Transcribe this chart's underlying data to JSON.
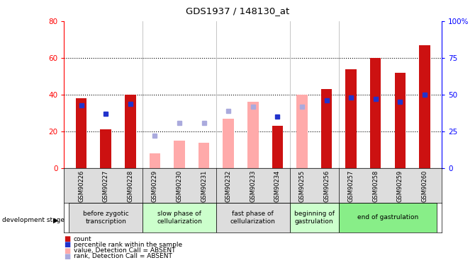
{
  "title": "GDS1937 / 148130_at",
  "samples": [
    "GSM90226",
    "GSM90227",
    "GSM90228",
    "GSM90229",
    "GSM90230",
    "GSM90231",
    "GSM90232",
    "GSM90233",
    "GSM90234",
    "GSM90255",
    "GSM90256",
    "GSM90257",
    "GSM90258",
    "GSM90259",
    "GSM90260"
  ],
  "count_values": [
    38,
    21,
    40,
    null,
    null,
    null,
    null,
    null,
    23,
    null,
    43,
    54,
    60,
    52,
    67
  ],
  "rank_values": [
    43,
    37,
    44,
    null,
    null,
    null,
    null,
    null,
    35,
    null,
    46,
    48,
    47,
    45,
    50
  ],
  "absent_value": [
    null,
    null,
    null,
    8,
    15,
    14,
    27,
    36,
    null,
    40,
    null,
    null,
    null,
    null,
    null
  ],
  "absent_rank": [
    null,
    null,
    null,
    22,
    31,
    31,
    39,
    42,
    null,
    42,
    null,
    null,
    null,
    null,
    null
  ],
  "bar_width": 0.45,
  "ylim_left": [
    0,
    80
  ],
  "ylim_right": [
    0,
    100
  ],
  "yticks_left": [
    0,
    20,
    40,
    60,
    80
  ],
  "yticks_right": [
    0,
    25,
    50,
    75,
    100
  ],
  "color_count": "#cc1111",
  "color_rank": "#2233cc",
  "color_absent_value": "#ffaaaa",
  "color_absent_rank": "#aaaadd",
  "stage_groups": [
    {
      "label": "before zygotic\ntranscription",
      "indices": [
        0,
        1,
        2
      ],
      "color": "#dddddd"
    },
    {
      "label": "slow phase of\ncellularization",
      "indices": [
        3,
        4,
        5
      ],
      "color": "#ccffcc"
    },
    {
      "label": "fast phase of\ncellularization",
      "indices": [
        6,
        7,
        8
      ],
      "color": "#dddddd"
    },
    {
      "label": "beginning of\ngastrulation",
      "indices": [
        9,
        10
      ],
      "color": "#ccffcc"
    },
    {
      "label": "end of gastrulation",
      "indices": [
        11,
        12,
        13,
        14
      ],
      "color": "#88ee88"
    }
  ],
  "stage_boundaries": [
    2.5,
    5.5,
    8.5,
    10.5
  ],
  "legend_items": [
    {
      "label": "count",
      "color": "#cc1111"
    },
    {
      "label": "percentile rank within the sample",
      "color": "#2233cc"
    },
    {
      "label": "value, Detection Call = ABSENT",
      "color": "#ffaaaa"
    },
    {
      "label": "rank, Detection Call = ABSENT",
      "color": "#aaaadd"
    }
  ],
  "grid_yticks": [
    20,
    40,
    60
  ]
}
